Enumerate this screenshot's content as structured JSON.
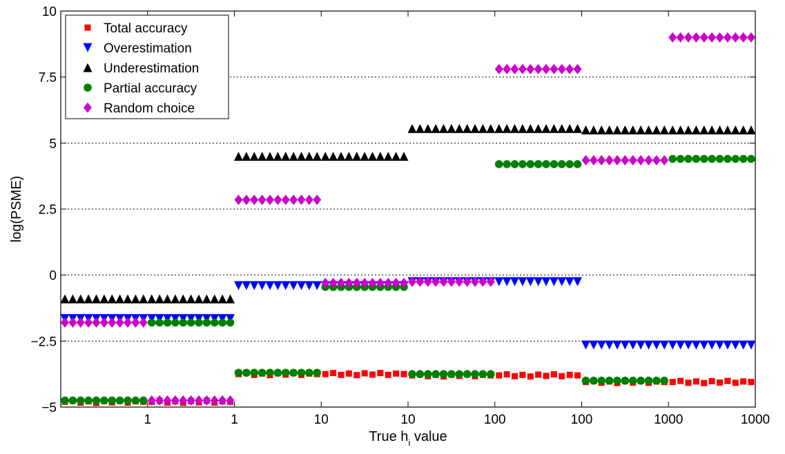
{
  "chart_data": {
    "type": "scatter",
    "xlabel": "True h",
    "xlabel_subscript": "i",
    "xlabel_suffix": " value",
    "ylabel": "log(PSME)",
    "ylim": [
      -5,
      10
    ],
    "y_ticks": [
      {
        "value": -5,
        "label": "−5"
      },
      {
        "value": -2.5,
        "label": "−2.5"
      },
      {
        "value": 0,
        "label": "0"
      },
      {
        "value": 2.5,
        "label": "2.5"
      },
      {
        "value": 5,
        "label": "5"
      },
      {
        "value": 7.5,
        "label": "7.5"
      },
      {
        "value": 10,
        "label": "10"
      }
    ],
    "grid": "horizontal dotted",
    "legend_position": "top-left",
    "segments": [
      {
        "x_range": [
          0.1,
          1
        ],
        "x_ticks": [
          "1"
        ]
      },
      {
        "x_range": [
          1,
          10
        ],
        "x_ticks": [
          "1",
          "10"
        ]
      },
      {
        "x_range": [
          10,
          100
        ],
        "x_ticks": [
          "10",
          "100"
        ]
      },
      {
        "x_range": [
          100,
          1000
        ],
        "x_ticks": [
          "100",
          "1000"
        ]
      },
      {
        "x_range": [
          1000,
          10000
        ],
        "x_ticks": [
          "1000",
          "10000"
        ]
      },
      {
        "x_range": [
          10000,
          100000
        ],
        "x_ticks": [
          "10000",
          "100000"
        ]
      }
    ],
    "x_tick_labels": [
      "1",
      "1",
      "10",
      "10",
      "100",
      "100",
      "1000",
      "1000"
    ],
    "series": [
      {
        "name": "Total accuracy",
        "marker": "square",
        "color": "#ff0000",
        "values": [
          -4.8,
          -3.75,
          -3.75,
          -3.8,
          -3.8,
          -4.05
        ]
      },
      {
        "name": "Overestimation",
        "marker": "triangle-down",
        "color": "#0000ff",
        "values": [
          -1.65,
          -0.4,
          -0.35,
          -0.25,
          -2.65,
          -2.65
        ]
      },
      {
        "name": "Underestimation",
        "marker": "triangle-up",
        "color": "#000000",
        "values": [
          -0.9,
          4.5,
          5.55,
          5.55,
          5.5,
          5.5
        ]
      },
      {
        "name": "Partial accuracy",
        "marker": "circle",
        "color": "#008000",
        "values": [
          -4.75,
          -3.7,
          -0.45,
          4.2,
          -4.0,
          4.4
        ]
      },
      {
        "name": "Random choice",
        "marker": "diamond",
        "color": "#cc00cc",
        "values": [
          -1.8,
          2.85,
          -0.3,
          7.8,
          4.35,
          9.0
        ]
      }
    ],
    "segment_overrides": [
      {
        "segment": 0,
        "series": "Partial accuracy",
        "split": [
          [
            -4.75,
            0.5
          ],
          [
            -1.8,
            0.5
          ]
        ]
      },
      {
        "segment": 0,
        "series": "Random choice",
        "split": [
          [
            -1.8,
            0.5
          ],
          [
            -4.75,
            0.5
          ]
        ]
      },
      {
        "segment": 1,
        "series": "Random choice",
        "split": [
          [
            2.85,
            0.5
          ]
        ]
      },
      {
        "segment": 1,
        "series": "Partial accuracy",
        "split": [
          [
            -3.7,
            0.5
          ]
        ]
      },
      {
        "segment": 2,
        "series": "Random choice",
        "split": [
          [
            -0.3,
            0.5
          ],
          [
            -0.25,
            0.5
          ]
        ]
      },
      {
        "segment": 2,
        "series": "Partial accuracy",
        "split": [
          [
            -0.45,
            0.5
          ],
          [
            -3.75,
            0.5
          ]
        ]
      },
      {
        "segment": 3,
        "series": "Random choice",
        "split": [
          [
            7.8,
            0.5
          ]
        ]
      },
      {
        "segment": 3,
        "series": "Partial accuracy",
        "split": [
          [
            4.2,
            0.5
          ]
        ]
      },
      {
        "segment": 4,
        "series": "Partial accuracy",
        "split": [
          [
            -4.0,
            0.5
          ]
        ]
      },
      {
        "segment": 4,
        "series": "Random choice",
        "split": [
          [
            4.35,
            0.5
          ]
        ]
      },
      {
        "segment": 5,
        "series": "Random choice",
        "split": [
          [
            9.0,
            0.5
          ]
        ]
      },
      {
        "segment": 5,
        "series": "Partial accuracy",
        "split": [
          [
            4.4,
            0.5
          ]
        ]
      }
    ]
  }
}
